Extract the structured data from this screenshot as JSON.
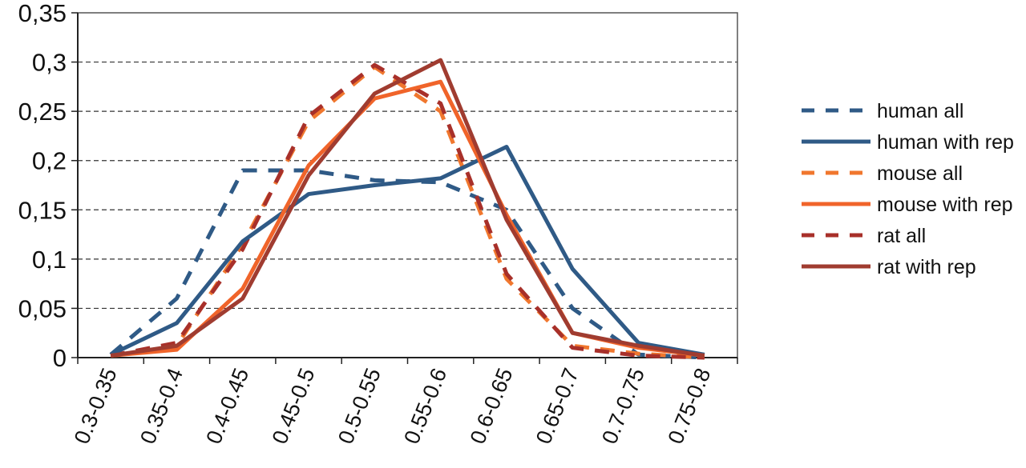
{
  "chart_data": {
    "type": "line",
    "categories": [
      "0.3-0.35",
      "0.35-0.4",
      "0.4-0.45",
      "0.45-0.5",
      "0.5-0.55",
      "0.55-0.6",
      "0.6-0.65",
      "0.65-0.7",
      "0.7-0.75",
      "0.75-0.8"
    ],
    "ylim": [
      0,
      0.35
    ],
    "yticks": [
      "0",
      "0,05",
      "0,1",
      "0,15",
      "0,2",
      "0,25",
      "0,3",
      "0,35"
    ],
    "grid": true,
    "legend_position": "right",
    "series": [
      {
        "name": "human all",
        "style": "dashed",
        "color": "#2f5a86",
        "values": [
          0.003,
          0.06,
          0.19,
          0.19,
          0.18,
          0.178,
          0.15,
          0.05,
          0.003,
          0.0
        ]
      },
      {
        "name": "human with rep",
        "style": "solid",
        "color": "#2f5a86",
        "values": [
          0.003,
          0.035,
          0.118,
          0.166,
          0.175,
          0.182,
          0.214,
          0.09,
          0.015,
          0.003
        ]
      },
      {
        "name": "mouse all",
        "style": "dashed",
        "color": "#f0772e",
        "values": [
          0.002,
          0.012,
          0.115,
          0.24,
          0.295,
          0.25,
          0.08,
          0.012,
          0.004,
          0.0
        ]
      },
      {
        "name": "mouse with rep",
        "style": "solid",
        "color": "#f0642a",
        "values": [
          0.002,
          0.008,
          0.07,
          0.195,
          0.263,
          0.28,
          0.145,
          0.025,
          0.01,
          0.002
        ]
      },
      {
        "name": "rat all",
        "style": "dashed",
        "color": "#a8302a",
        "values": [
          0.002,
          0.015,
          0.11,
          0.245,
          0.297,
          0.258,
          0.085,
          0.01,
          0.002,
          0.0
        ]
      },
      {
        "name": "rat with rep",
        "style": "solid",
        "color": "#a03c30",
        "values": [
          0.002,
          0.012,
          0.06,
          0.185,
          0.268,
          0.302,
          0.14,
          0.025,
          0.012,
          0.002
        ]
      }
    ]
  }
}
